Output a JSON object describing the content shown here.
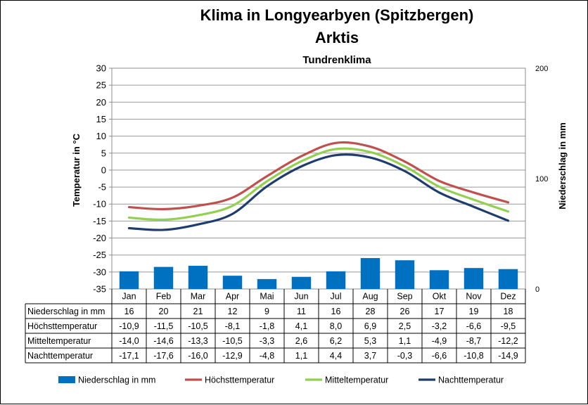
{
  "chart_data": {
    "type": "bar+line",
    "title": "Klima in Longyearbyen (Spitzbergen)",
    "subtitle": "Arktis",
    "subtitle2": "Tundrenklima",
    "ylabel_left": "Temperatur in °C",
    "ylabel_right": "Niederschlag in mm",
    "ylim_left": [
      -35,
      30
    ],
    "yticks_left": [
      "30",
      "25",
      "20",
      "15",
      "10",
      "5",
      "0",
      "-5",
      "-10",
      "-15",
      "-20",
      "-25",
      "-30",
      "-35"
    ],
    "ylim_right": [
      0,
      200
    ],
    "yticks_right": [
      "200",
      "100",
      "0"
    ],
    "categories": [
      "Jan",
      "Feb",
      "Mar",
      "Apr",
      "Mai",
      "Jun",
      "Jul",
      "Aug",
      "Sep",
      "Okt",
      "Nov",
      "Dez"
    ],
    "grid": true,
    "legend_position": "bottom",
    "series": [
      {
        "name": "Niederschlag in mm",
        "type": "bar",
        "axis": "right",
        "color": "#0070C0",
        "values": [
          16,
          20,
          21,
          12,
          9,
          11,
          16,
          28,
          26,
          17,
          19,
          18
        ],
        "labels": [
          "16",
          "20",
          "21",
          "12",
          "9",
          "11",
          "16",
          "28",
          "26",
          "17",
          "19",
          "18"
        ]
      },
      {
        "name": "Höchsttemperatur",
        "type": "line",
        "axis": "left",
        "color": "#C0504D",
        "values": [
          -10.9,
          -11.5,
          -10.5,
          -8.1,
          -1.8,
          4.1,
          8.0,
          6.9,
          2.5,
          -3.2,
          -6.6,
          -9.5
        ],
        "labels": [
          "-10,9",
          "-11,5",
          "-10,5",
          "-8,1",
          "-1,8",
          "4,1",
          "8,0",
          "6,9",
          "2,5",
          "-3,2",
          "-6,6",
          "-9,5"
        ]
      },
      {
        "name": "Mitteltemperatur",
        "type": "line",
        "axis": "left",
        "color": "#92D050",
        "values": [
          -14.0,
          -14.6,
          -13.3,
          -10.5,
          -3.3,
          2.6,
          6.2,
          5.3,
          1.1,
          -4.9,
          -8.7,
          -12.2
        ],
        "labels": [
          "-14,0",
          "-14,6",
          "-13,3",
          "-10,5",
          "-3,3",
          "2,6",
          "6,2",
          "5,3",
          "1,1",
          "-4,9",
          "-8,7",
          "-12,2"
        ]
      },
      {
        "name": "Nachttemperatur",
        "type": "line",
        "axis": "left",
        "color": "#1F3C6E",
        "values": [
          -17.1,
          -17.6,
          -16.0,
          -12.9,
          -4.8,
          1.1,
          4.4,
          3.7,
          -0.3,
          -6.6,
          -10.8,
          -14.9
        ],
        "labels": [
          "-17,1",
          "-17,6",
          "-16,0",
          "-12,9",
          "-4,8",
          "1,1",
          "4,4",
          "3,7",
          "-0,3",
          "-6,6",
          "-10,8",
          "-14,9"
        ]
      }
    ]
  }
}
